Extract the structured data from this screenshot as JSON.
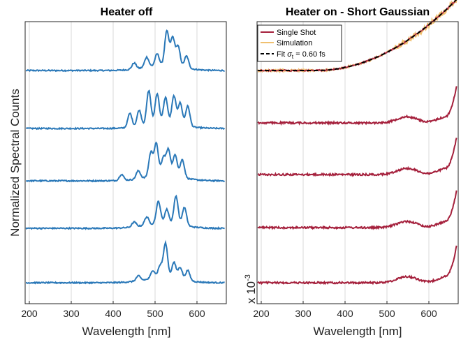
{
  "colors": {
    "heater_off": "#2a78b8",
    "single_shot": "#a5203c",
    "simulation": "#f0c070",
    "fit": "#000000",
    "grid": "#d9d9d9"
  },
  "chart_data": [
    {
      "type": "line",
      "title": "Heater off",
      "xlabel": "Wavelength [nm]",
      "ylabel": "Normalized Spectral Counts",
      "xlim": [
        190,
        670
      ],
      "xticks": [
        200,
        300,
        400,
        500,
        600
      ],
      "xtick_labels": [
        "200",
        "300",
        "400",
        "500",
        "600"
      ],
      "grid": true,
      "series": [
        {
          "peaks": [
            [
              450,
              0.15
            ],
            [
              480,
              0.25
            ],
            [
              505,
              0.3
            ],
            [
              528,
              0.85
            ],
            [
              542,
              0.7
            ],
            [
              555,
              0.5
            ],
            [
              575,
              0.3
            ]
          ]
        },
        {
          "peaks": [
            [
              440,
              0.35
            ],
            [
              462,
              0.4
            ],
            [
              485,
              0.85
            ],
            [
              505,
              0.75
            ],
            [
              525,
              0.65
            ],
            [
              545,
              0.7
            ],
            [
              560,
              0.55
            ],
            [
              578,
              0.5
            ]
          ]
        },
        {
          "peaks": [
            [
              420,
              0.15
            ],
            [
              460,
              0.2
            ],
            [
              490,
              0.6
            ],
            [
              503,
              0.8
            ],
            [
              520,
              0.45
            ],
            [
              532,
              0.65
            ],
            [
              548,
              0.55
            ],
            [
              565,
              0.45
            ]
          ]
        },
        {
          "peaks": [
            [
              450,
              0.12
            ],
            [
              480,
              0.2
            ],
            [
              508,
              0.55
            ],
            [
              528,
              0.35
            ],
            [
              550,
              0.7
            ],
            [
              570,
              0.45
            ]
          ]
        },
        {
          "peaks": [
            [
              460,
              0.12
            ],
            [
              495,
              0.2
            ],
            [
              512,
              0.3
            ],
            [
              525,
              0.85
            ],
            [
              545,
              0.4
            ],
            [
              560,
              0.3
            ],
            [
              578,
              0.25
            ]
          ]
        }
      ]
    },
    {
      "type": "line",
      "title": "Heater on - Short Gaussian",
      "xlabel": "Wavelength [nm]",
      "xlim": [
        190,
        670
      ],
      "xticks": [
        200,
        300,
        400,
        500,
        600
      ],
      "xtick_labels": [
        "200",
        "300",
        "400",
        "500",
        "600"
      ],
      "y_scale_label": "x 10",
      "y_scale_exponent": "-3",
      "grid": true,
      "legend": {
        "placement": "top-left",
        "entries": [
          {
            "label": "Single Shot",
            "style": "solid",
            "color_key": "single_shot"
          },
          {
            "label": "Simulation",
            "style": "solid",
            "color_key": "simulation"
          },
          {
            "label_prefix": "Fit ",
            "label_symbol": "σ",
            "label_sub": "t",
            "label_suffix": " = 0.60 fs",
            "style": "dashed",
            "color_key": "fit"
          }
        ]
      },
      "series": [
        {
          "name": "Single Shot"
        },
        {
          "name": "Simulation"
        },
        {
          "name": "Fit"
        }
      ]
    }
  ]
}
